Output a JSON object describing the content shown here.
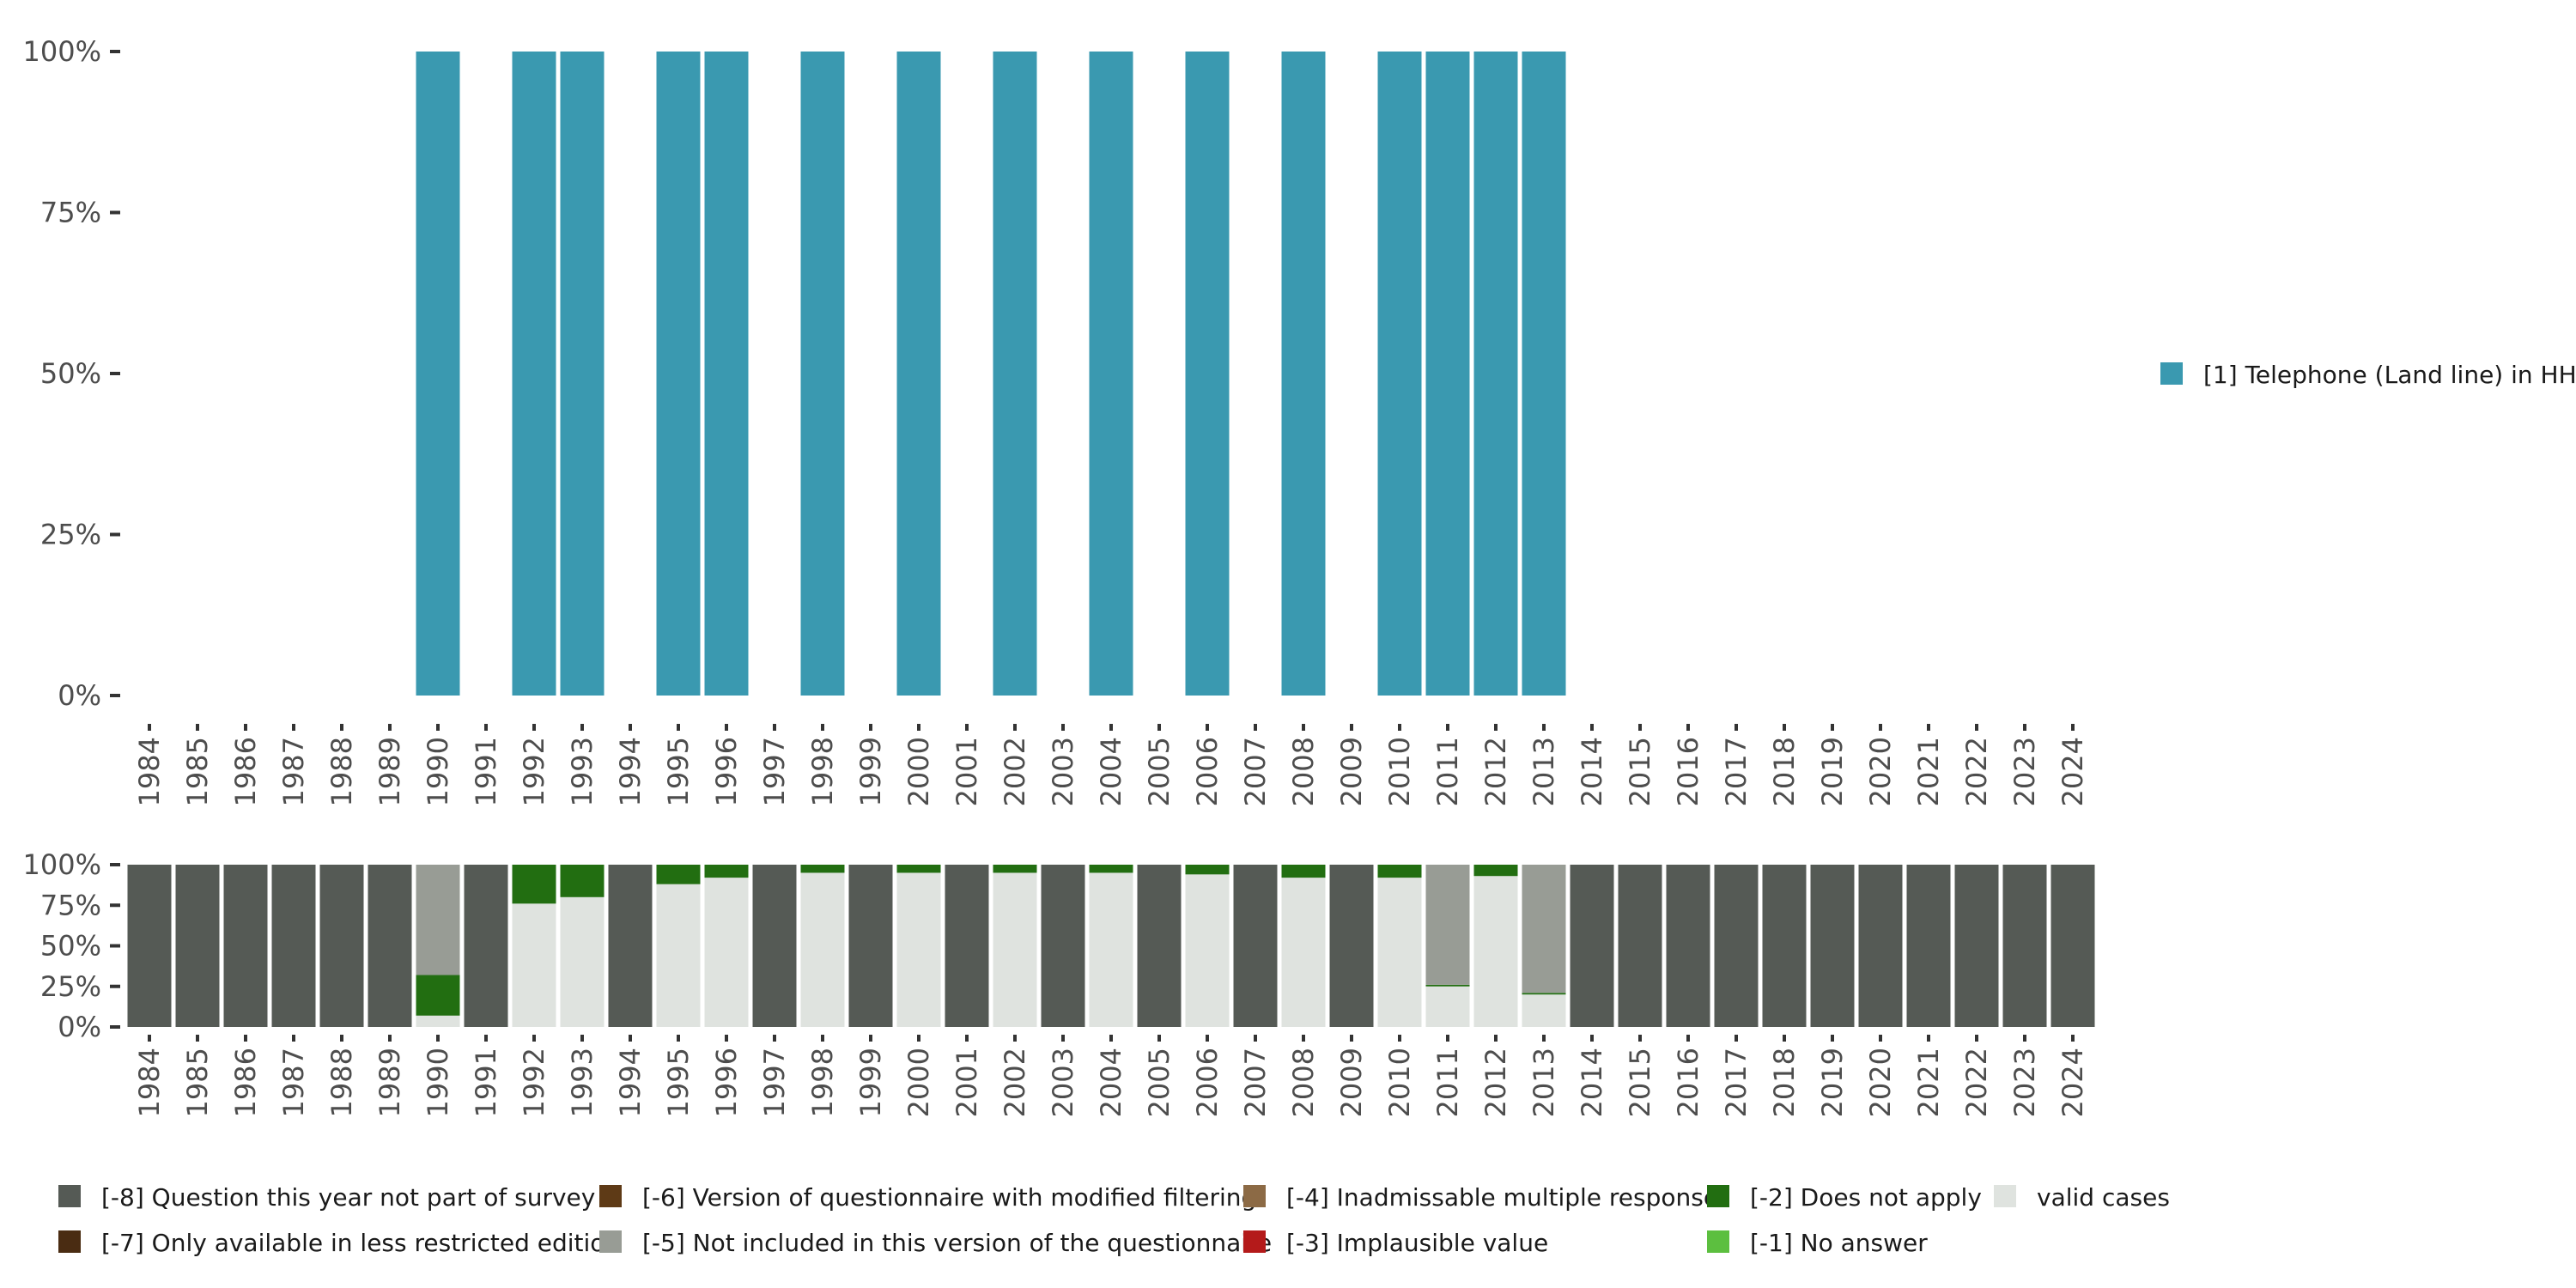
{
  "chart_data": [
    {
      "type": "bar",
      "name": "main",
      "stacked": true,
      "categories": [
        "1984",
        "1985",
        "1986",
        "1987",
        "1988",
        "1989",
        "1990",
        "1991",
        "1992",
        "1993",
        "1994",
        "1995",
        "1996",
        "1997",
        "1998",
        "1999",
        "2000",
        "2001",
        "2002",
        "2003",
        "2004",
        "2005",
        "2006",
        "2007",
        "2008",
        "2009",
        "2010",
        "2011",
        "2012",
        "2013",
        "2014",
        "2015",
        "2016",
        "2017",
        "2018",
        "2019",
        "2020",
        "2021",
        "2022",
        "2023",
        "2024"
      ],
      "series": [
        {
          "name": "[1] Telephone (Land line) in HH",
          "color": "#3a99b0",
          "values": [
            null,
            null,
            null,
            null,
            null,
            null,
            100,
            null,
            100,
            100,
            null,
            100,
            100,
            null,
            100,
            null,
            100,
            null,
            100,
            null,
            100,
            null,
            100,
            null,
            100,
            null,
            100,
            100,
            100,
            100,
            null,
            null,
            null,
            null,
            null,
            null,
            null,
            null,
            null,
            null,
            null
          ]
        }
      ],
      "ylim": [
        0,
        100
      ],
      "yticks": [
        "0%",
        "25%",
        "50%",
        "75%",
        "100%"
      ],
      "legend_position": "right"
    },
    {
      "type": "bar",
      "name": "missings",
      "stacked": true,
      "categories": [
        "1984",
        "1985",
        "1986",
        "1987",
        "1988",
        "1989",
        "1990",
        "1991",
        "1992",
        "1993",
        "1994",
        "1995",
        "1996",
        "1997",
        "1998",
        "1999",
        "2000",
        "2001",
        "2002",
        "2003",
        "2004",
        "2005",
        "2006",
        "2007",
        "2008",
        "2009",
        "2010",
        "2011",
        "2012",
        "2013",
        "2014",
        "2015",
        "2016",
        "2017",
        "2018",
        "2019",
        "2020",
        "2021",
        "2022",
        "2023",
        "2024"
      ],
      "series": [
        {
          "name": "valid cases",
          "color": "#dfe3df",
          "values": [
            0,
            0,
            0,
            0,
            0,
            0,
            7,
            0,
            76,
            80,
            0,
            88,
            92,
            0,
            95,
            0,
            95,
            0,
            95,
            0,
            95,
            0,
            94,
            0,
            92,
            0,
            92,
            25,
            93,
            20,
            0,
            0,
            0,
            0,
            0,
            0,
            0,
            0,
            0,
            0,
            0
          ]
        },
        {
          "name": "[-1] No answer",
          "color": "#5cbf3f",
          "values": [
            0,
            0,
            0,
            0,
            0,
            0,
            0,
            0,
            0,
            0,
            0,
            0,
            0,
            0,
            0,
            0,
            0,
            0,
            0,
            0,
            0,
            0,
            0,
            0,
            0,
            0,
            0,
            0,
            0,
            0,
            0,
            0,
            0,
            0,
            0,
            0,
            0,
            0,
            0,
            0,
            0
          ]
        },
        {
          "name": "[-2] Does not apply",
          "color": "#226e11",
          "values": [
            0,
            0,
            0,
            0,
            0,
            0,
            25,
            0,
            24,
            20,
            0,
            12,
            8,
            0,
            5,
            0,
            5,
            0,
            5,
            0,
            5,
            0,
            6,
            0,
            8,
            0,
            8,
            1,
            7,
            1,
            0,
            0,
            0,
            0,
            0,
            0,
            0,
            0,
            0,
            0,
            0
          ]
        },
        {
          "name": "[-3] Implausible value",
          "color": "#b41a1a",
          "values": [
            0,
            0,
            0,
            0,
            0,
            0,
            0,
            0,
            0,
            0,
            0,
            0,
            0,
            0,
            0,
            0,
            0,
            0,
            0,
            0,
            0,
            0,
            0,
            0,
            0,
            0,
            0,
            0,
            0,
            0,
            0,
            0,
            0,
            0,
            0,
            0,
            0,
            0,
            0,
            0,
            0
          ]
        },
        {
          "name": "[-4] Inadmissable multiple response",
          "color": "#8c6a45",
          "values": [
            0,
            0,
            0,
            0,
            0,
            0,
            0,
            0,
            0,
            0,
            0,
            0,
            0,
            0,
            0,
            0,
            0,
            0,
            0,
            0,
            0,
            0,
            0,
            0,
            0,
            0,
            0,
            0,
            0,
            0,
            0,
            0,
            0,
            0,
            0,
            0,
            0,
            0,
            0,
            0,
            0
          ]
        },
        {
          "name": "[-5] Not included in this version of the questionnaire",
          "color": "#989c95",
          "values": [
            0,
            0,
            0,
            0,
            0,
            0,
            68,
            0,
            0,
            0,
            0,
            0,
            0,
            0,
            0,
            0,
            0,
            0,
            0,
            0,
            0,
            0,
            0,
            0,
            0,
            0,
            0,
            74,
            0,
            79,
            0,
            0,
            0,
            0,
            0,
            0,
            0,
            0,
            0,
            0,
            0
          ]
        },
        {
          "name": "[-6] Version of questionnaire with modified filtering",
          "color": "#5e3a16",
          "values": [
            0,
            0,
            0,
            0,
            0,
            0,
            0,
            0,
            0,
            0,
            0,
            0,
            0,
            0,
            0,
            0,
            0,
            0,
            0,
            0,
            0,
            0,
            0,
            0,
            0,
            0,
            0,
            0,
            0,
            0,
            0,
            0,
            0,
            0,
            0,
            0,
            0,
            0,
            0,
            0,
            0
          ]
        },
        {
          "name": "[-7] Only available in less restricted edition",
          "color": "#4a2c12",
          "values": [
            0,
            0,
            0,
            0,
            0,
            0,
            0,
            0,
            0,
            0,
            0,
            0,
            0,
            0,
            0,
            0,
            0,
            0,
            0,
            0,
            0,
            0,
            0,
            0,
            0,
            0,
            0,
            0,
            0,
            0,
            0,
            0,
            0,
            0,
            0,
            0,
            0,
            0,
            0,
            0,
            0
          ]
        },
        {
          "name": "[-8] Question this year not part of survey",
          "color": "#555a55",
          "values": [
            100,
            100,
            100,
            100,
            100,
            100,
            0,
            100,
            0,
            0,
            100,
            0,
            0,
            100,
            0,
            100,
            0,
            100,
            0,
            100,
            0,
            100,
            0,
            100,
            0,
            100,
            0,
            0,
            0,
            0,
            100,
            100,
            100,
            100,
            100,
            100,
            100,
            100,
            100,
            100,
            100
          ]
        }
      ],
      "ylim": [
        0,
        100
      ],
      "yticks": [
        "0%",
        "25%",
        "50%",
        "75%",
        "100%"
      ],
      "legend_position": "bottom",
      "legend_order": [
        "[-8] Question this year not part of survey",
        "[-7] Only available in less restricted edition",
        "[-6] Version of questionnaire with modified filtering",
        "[-5] Not included in this version of the questionnaire",
        "[-4] Inadmissable multiple response",
        "[-3] Implausible value",
        "[-2] Does not apply",
        "[-1] No answer",
        "valid cases"
      ]
    }
  ]
}
